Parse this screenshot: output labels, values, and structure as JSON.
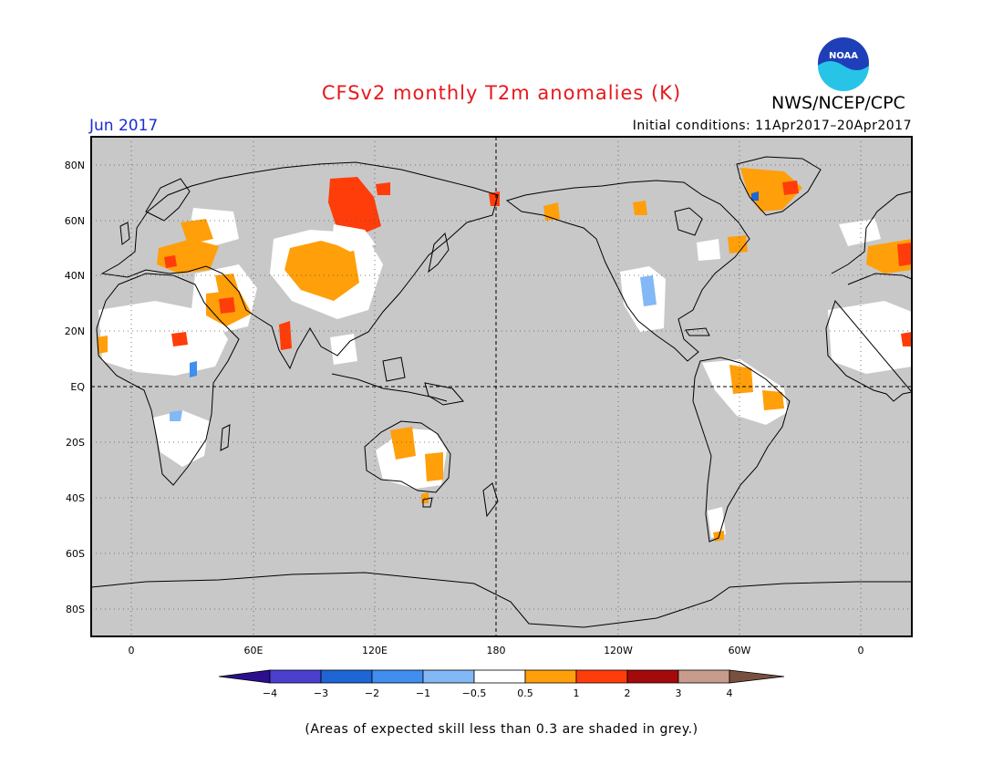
{
  "title": "CFSv2 monthly T2m anomalies (K)",
  "agency": "NWS/NCEP/CPC",
  "period": "Jun 2017",
  "initial_conditions": "Initial conditions: 11Apr2017–20Apr2017",
  "footnote": "(Areas of expected skill less than 0.3 are shaded in grey.)",
  "logo": {
    "icon": "noaa-logo",
    "text": "NOAA"
  },
  "map": {
    "projection": "equirectangular",
    "lon_range": [
      -20,
      380
    ],
    "lat_range": [
      -90,
      90
    ],
    "background_color": "#c8c8c8",
    "x_ticks": [
      "0",
      "60E",
      "120E",
      "180",
      "120W",
      "60W",
      "0"
    ],
    "y_ticks": [
      "80N",
      "60N",
      "40N",
      "20N",
      "EQ",
      "20S",
      "40S",
      "60S",
      "80S"
    ],
    "grid": "dotted"
  },
  "colorbar": {
    "labels": [
      "−4",
      "−3",
      "−2",
      "−1",
      "−0.5",
      "0.5",
      "1",
      "2",
      "3",
      "4"
    ],
    "colors": [
      "#2b0f8f",
      "#4a3fcf",
      "#1e66d6",
      "#3f8ef0",
      "#82b8f5",
      "#ffffff",
      "#ff9f0a",
      "#ff3d0a",
      "#a50a0a",
      "#c89c8c",
      "#785040"
    ]
  }
}
